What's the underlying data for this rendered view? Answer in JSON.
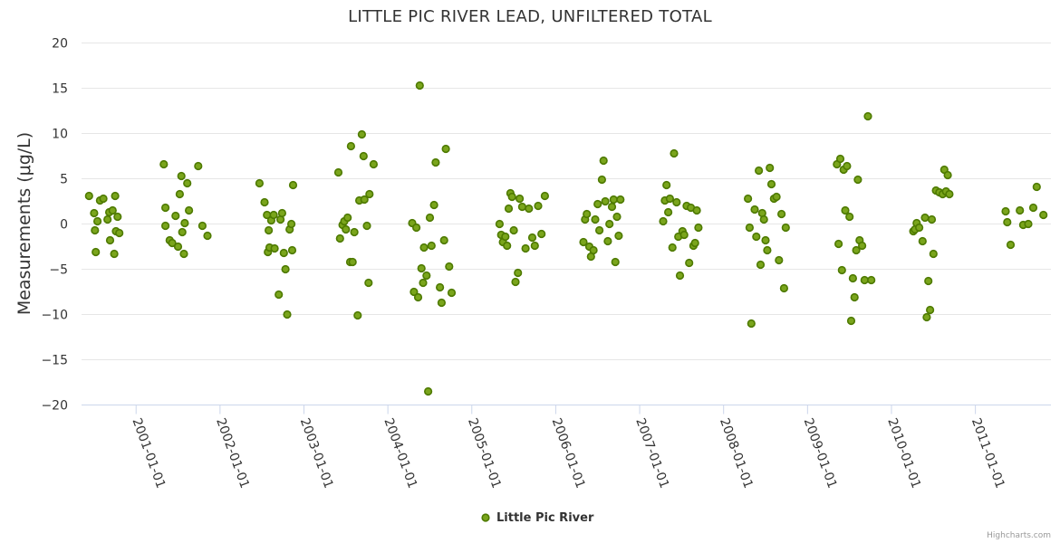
{
  "chart_data": {
    "type": "scatter",
    "title": "LITTLE PIC RIVER LEAD, UNFILTERED TOTAL",
    "ylabel": "Measurements (μg/L)",
    "xlabel": "",
    "ylim": [
      -20,
      20
    ],
    "yticks": [
      -20,
      -15,
      -10,
      -5,
      0,
      5,
      10,
      15,
      20
    ],
    "ytick_labels": [
      "−20",
      "−15",
      "−10",
      "−5",
      "0",
      "5",
      "10",
      "15",
      "20"
    ],
    "xlim": [
      2000.35,
      2011.9
    ],
    "xticks": [
      2001,
      2002,
      2003,
      2004,
      2005,
      2006,
      2007,
      2008,
      2009,
      2010,
      2011
    ],
    "xtick_labels": [
      "2001-01-01",
      "2002-01-01",
      "2003-01-01",
      "2004-01-01",
      "2005-01-01",
      "2006-01-01",
      "2007-01-01",
      "2008-01-01",
      "2009-01-01",
      "2010-01-01",
      "2011-01-01"
    ],
    "legend": {
      "position": "bottom-center",
      "entries": [
        "Little Pic River"
      ]
    },
    "credits": "Highcharts.com",
    "series": [
      {
        "name": "Little Pic River",
        "color": "#7aa51c",
        "points": [
          [
            2000.44,
            3.1
          ],
          [
            2000.5,
            1.2
          ],
          [
            2000.51,
            -0.7
          ],
          [
            2000.52,
            -3.1
          ],
          [
            2000.54,
            0.3
          ],
          [
            2000.57,
            2.6
          ],
          [
            2000.61,
            2.8
          ],
          [
            2000.66,
            0.5
          ],
          [
            2000.68,
            1.3
          ],
          [
            2000.69,
            -1.8
          ],
          [
            2000.72,
            1.5
          ],
          [
            2000.74,
            -3.3
          ],
          [
            2000.75,
            3.1
          ],
          [
            2000.76,
            -0.8
          ],
          [
            2000.78,
            0.8
          ],
          [
            2000.8,
            -1.0
          ],
          [
            2001.33,
            6.6
          ],
          [
            2001.35,
            1.8
          ],
          [
            2001.35,
            -0.2
          ],
          [
            2001.4,
            -1.8
          ],
          [
            2001.43,
            -2.1
          ],
          [
            2001.47,
            0.9
          ],
          [
            2001.5,
            -2.5
          ],
          [
            2001.52,
            3.3
          ],
          [
            2001.54,
            5.3
          ],
          [
            2001.55,
            -0.9
          ],
          [
            2001.57,
            -3.3
          ],
          [
            2001.58,
            0.1
          ],
          [
            2001.61,
            4.5
          ],
          [
            2001.63,
            1.5
          ],
          [
            2001.74,
            6.4
          ],
          [
            2001.79,
            -0.2
          ],
          [
            2001.85,
            -1.3
          ],
          [
            2002.47,
            4.5
          ],
          [
            2002.53,
            2.4
          ],
          [
            2002.56,
            1.0
          ],
          [
            2002.57,
            -3.1
          ],
          [
            2002.58,
            -0.7
          ],
          [
            2002.59,
            -2.6
          ],
          [
            2002.61,
            0.4
          ],
          [
            2002.64,
            1.0
          ],
          [
            2002.65,
            -2.7
          ],
          [
            2002.7,
            -7.8
          ],
          [
            2002.72,
            0.5
          ],
          [
            2002.74,
            1.2
          ],
          [
            2002.76,
            -3.2
          ],
          [
            2002.78,
            -5.0
          ],
          [
            2002.8,
            -10.0
          ],
          [
            2002.83,
            -0.6
          ],
          [
            2002.85,
            0.0
          ],
          [
            2002.86,
            -2.9
          ],
          [
            2002.87,
            4.3
          ],
          [
            2003.41,
            5.7
          ],
          [
            2003.43,
            -1.6
          ],
          [
            2003.46,
            -0.1
          ],
          [
            2003.48,
            0.3
          ],
          [
            2003.5,
            -0.6
          ],
          [
            2003.52,
            0.7
          ],
          [
            2003.55,
            -4.2
          ],
          [
            2003.56,
            8.6
          ],
          [
            2003.58,
            -4.2
          ],
          [
            2003.6,
            -0.9
          ],
          [
            2003.64,
            -10.1
          ],
          [
            2003.66,
            2.6
          ],
          [
            2003.69,
            9.9
          ],
          [
            2003.71,
            7.5
          ],
          [
            2003.72,
            2.7
          ],
          [
            2003.75,
            -0.2
          ],
          [
            2003.77,
            -6.5
          ],
          [
            2003.78,
            3.3
          ],
          [
            2003.83,
            6.6
          ],
          [
            2004.29,
            0.1
          ],
          [
            2004.31,
            -7.5
          ],
          [
            2004.34,
            -0.4
          ],
          [
            2004.36,
            -8.1
          ],
          [
            2004.38,
            15.3
          ],
          [
            2004.4,
            -4.9
          ],
          [
            2004.42,
            -6.5
          ],
          [
            2004.43,
            -2.6
          ],
          [
            2004.46,
            -5.7
          ],
          [
            2004.48,
            -18.5
          ],
          [
            2004.5,
            0.7
          ],
          [
            2004.52,
            -2.4
          ],
          [
            2004.55,
            2.1
          ],
          [
            2004.57,
            6.8
          ],
          [
            2004.62,
            -7.0
          ],
          [
            2004.64,
            -8.7
          ],
          [
            2004.67,
            -1.8
          ],
          [
            2004.69,
            8.3
          ],
          [
            2004.73,
            -4.7
          ],
          [
            2004.76,
            -7.6
          ]
        ]
      }
    ]
  },
  "more_points": [
    [
      2005.33,
      0.0
    ],
    [
      2005.35,
      -1.2
    ],
    [
      2005.37,
      -2.0
    ],
    [
      2005.4,
      -1.4
    ],
    [
      2005.42,
      -2.4
    ],
    [
      2005.44,
      1.7
    ],
    [
      2005.46,
      3.4
    ],
    [
      2005.48,
      3.0
    ],
    [
      2005.5,
      -0.7
    ],
    [
      2005.52,
      -6.4
    ],
    [
      2005.55,
      -5.4
    ],
    [
      2005.57,
      2.8
    ],
    [
      2005.6,
      1.9
    ],
    [
      2005.64,
      -2.7
    ],
    [
      2005.68,
      1.7
    ],
    [
      2005.72,
      -1.5
    ],
    [
      2005.75,
      -2.4
    ],
    [
      2005.79,
      2.0
    ],
    [
      2005.83,
      -1.1
    ],
    [
      2005.87,
      3.1
    ],
    [
      2006.33,
      -2.0
    ],
    [
      2006.35,
      0.5
    ],
    [
      2006.37,
      1.1
    ],
    [
      2006.4,
      -2.5
    ],
    [
      2006.42,
      -3.6
    ],
    [
      2006.45,
      -2.9
    ],
    [
      2006.47,
      0.5
    ],
    [
      2006.5,
      2.2
    ],
    [
      2006.52,
      -0.7
    ],
    [
      2006.55,
      4.9
    ],
    [
      2006.57,
      7.0
    ],
    [
      2006.59,
      2.5
    ],
    [
      2006.62,
      -1.9
    ],
    [
      2006.64,
      0.0
    ],
    [
      2006.67,
      1.9
    ],
    [
      2006.69,
      2.7
    ],
    [
      2006.71,
      -4.2
    ],
    [
      2006.73,
      0.8
    ],
    [
      2006.75,
      -1.3
    ],
    [
      2006.77,
      2.7
    ],
    [
      2007.28,
      0.3
    ],
    [
      2007.3,
      2.6
    ],
    [
      2007.32,
      4.3
    ],
    [
      2007.34,
      1.3
    ],
    [
      2007.36,
      2.8
    ],
    [
      2007.39,
      -2.6
    ],
    [
      2007.41,
      7.8
    ],
    [
      2007.44,
      2.4
    ],
    [
      2007.46,
      -1.4
    ],
    [
      2007.48,
      -5.7
    ],
    [
      2007.51,
      -0.8
    ],
    [
      2007.53,
      -1.2
    ],
    [
      2007.56,
      2.0
    ],
    [
      2007.59,
      -4.3
    ],
    [
      2007.61,
      1.8
    ],
    [
      2007.64,
      -2.4
    ],
    [
      2007.66,
      -2.1
    ],
    [
      2007.68,
      1.5
    ],
    [
      2007.7,
      -0.4
    ],
    [
      2008.33,
      -11.0
    ],
    [
      2008.31,
      -0.4
    ],
    [
      2008.29,
      2.8
    ],
    [
      2008.37,
      1.6
    ],
    [
      2008.39,
      -1.4
    ],
    [
      2008.42,
      5.9
    ],
    [
      2008.44,
      -4.5
    ],
    [
      2008.46,
      1.2
    ],
    [
      2008.48,
      0.5
    ],
    [
      2008.5,
      -1.8
    ],
    [
      2008.52,
      -2.9
    ],
    [
      2008.55,
      6.2
    ],
    [
      2008.57,
      4.4
    ],
    [
      2008.6,
      2.8
    ],
    [
      2008.63,
      3.0
    ],
    [
      2008.66,
      -4.0
    ],
    [
      2008.69,
      1.1
    ],
    [
      2008.72,
      -7.1
    ],
    [
      2008.74,
      -0.4
    ],
    [
      2009.35,
      6.6
    ],
    [
      2009.37,
      -2.2
    ],
    [
      2009.39,
      7.2
    ],
    [
      2009.41,
      -5.1
    ],
    [
      2009.43,
      6.0
    ],
    [
      2009.45,
      1.5
    ],
    [
      2009.47,
      6.4
    ],
    [
      2009.5,
      0.8
    ],
    [
      2009.52,
      -10.7
    ],
    [
      2009.54,
      -6.0
    ],
    [
      2009.56,
      -8.1
    ],
    [
      2009.58,
      -2.9
    ],
    [
      2009.6,
      4.9
    ],
    [
      2009.62,
      -1.8
    ],
    [
      2009.65,
      -2.4
    ],
    [
      2009.68,
      -6.2
    ],
    [
      2009.72,
      11.9
    ],
    [
      2009.76,
      -6.2
    ],
    [
      2010.26,
      -0.8
    ],
    [
      2010.28,
      -0.6
    ],
    [
      2010.3,
      0.1
    ],
    [
      2010.33,
      -0.4
    ],
    [
      2010.37,
      -1.9
    ],
    [
      2010.4,
      0.7
    ],
    [
      2010.42,
      -10.3
    ],
    [
      2010.44,
      -6.3
    ],
    [
      2010.46,
      -9.5
    ],
    [
      2010.48,
      0.5
    ],
    [
      2010.5,
      -3.3
    ],
    [
      2010.53,
      3.7
    ],
    [
      2010.57,
      3.5
    ],
    [
      2010.61,
      3.3
    ],
    [
      2010.63,
      6.0
    ],
    [
      2010.65,
      3.6
    ],
    [
      2010.67,
      5.4
    ],
    [
      2010.69,
      3.3
    ],
    [
      2011.36,
      1.4
    ],
    [
      2011.38,
      0.2
    ],
    [
      2011.42,
      -2.3
    ],
    [
      2011.53,
      1.5
    ],
    [
      2011.57,
      -0.1
    ],
    [
      2011.63,
      0.0
    ],
    [
      2011.69,
      1.8
    ],
    [
      2011.73,
      4.1
    ],
    [
      2011.81,
      1.0
    ]
  ]
}
